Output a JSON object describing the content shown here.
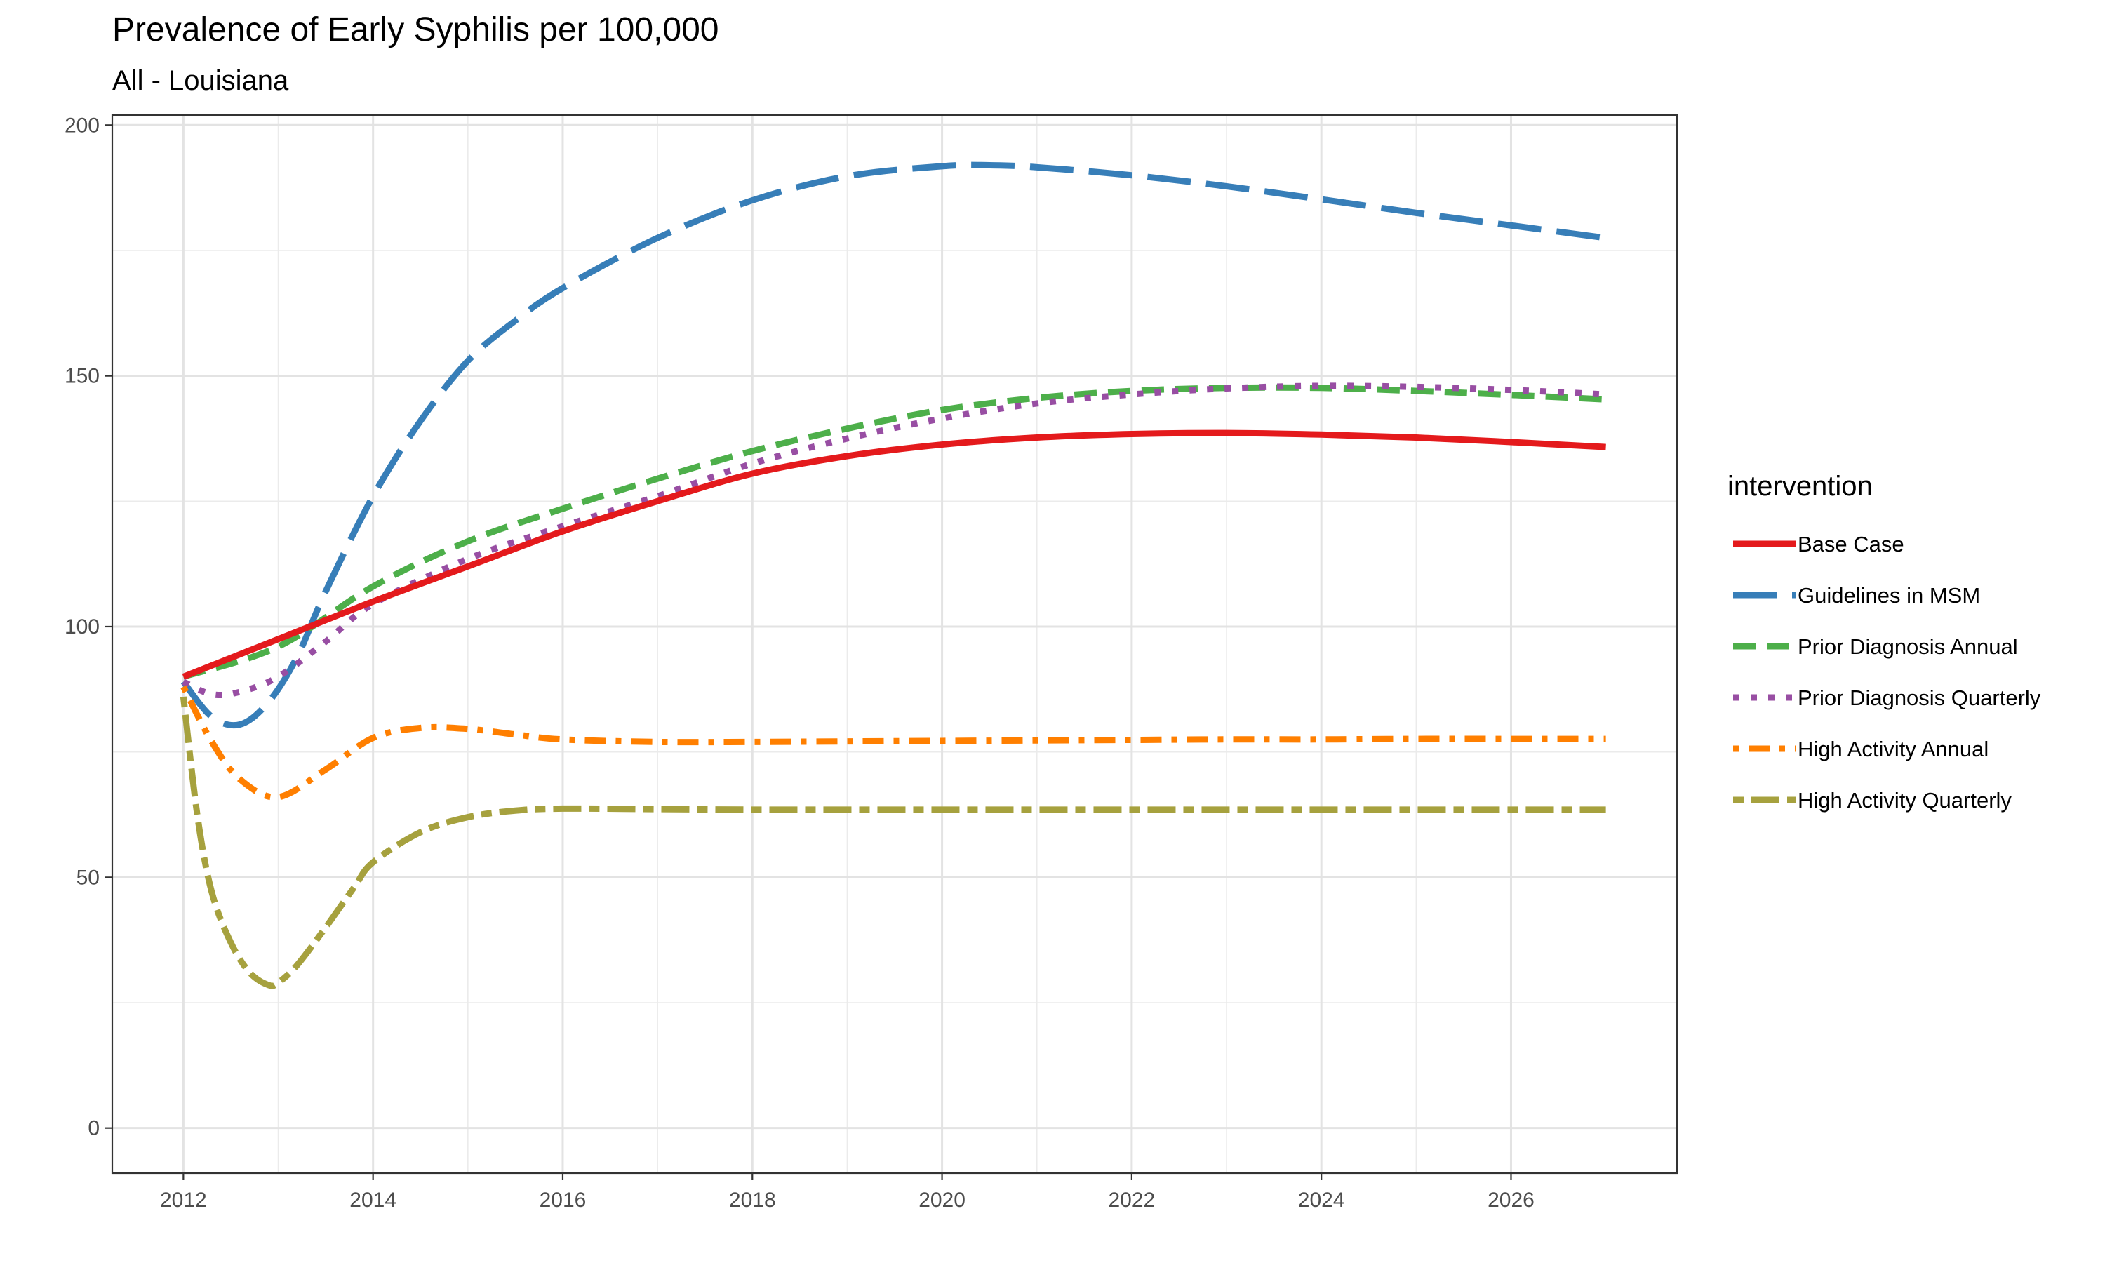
{
  "chart_data": {
    "type": "line",
    "title": "Prevalence of Early Syphilis per 100,000",
    "subtitle": "All - Louisiana",
    "xlabel": "",
    "ylabel": "",
    "xlim": [
      2011.25,
      2027.75
    ],
    "ylim": [
      -9,
      202
    ],
    "grid": true,
    "x_ticks": [
      2012,
      2014,
      2016,
      2018,
      2020,
      2022,
      2024,
      2026
    ],
    "y_ticks": [
      0,
      50,
      100,
      150,
      200
    ],
    "legend": {
      "title": "intervention",
      "position": "right"
    },
    "series": [
      {
        "name": "Base Case",
        "color": "#E41A1C",
        "dash": "solid",
        "x": [
          2012,
          2013,
          2014,
          2015,
          2016,
          2017,
          2018,
          2019,
          2020,
          2021,
          2022,
          2023,
          2024,
          2025,
          2026,
          2027
        ],
        "values": [
          90,
          97.5,
          105,
          112,
          119,
          125,
          130.5,
          134,
          136.3,
          137.7,
          138.4,
          138.6,
          138.3,
          137.7,
          136.8,
          135.8
        ]
      },
      {
        "name": "Guidelines in MSM",
        "color": "#377EB8",
        "dash": "longdash",
        "x": [
          2012,
          2012.3,
          2012.6,
          2012.9,
          2013.2,
          2013.5,
          2014,
          2014.5,
          2015,
          2015.5,
          2016,
          2017,
          2018,
          2019,
          2020,
          2020.5,
          2021,
          2022,
          2023,
          2024,
          2025,
          2026,
          2027
        ],
        "values": [
          89,
          82,
          80.5,
          85,
          94,
          107,
          126,
          141,
          153,
          161,
          167.5,
          177.5,
          185,
          189.8,
          191.8,
          192,
          191.6,
          190,
          187.8,
          185.2,
          182.5,
          180,
          177.5
        ]
      },
      {
        "name": "Prior Diagnosis Annual",
        "color": "#4DAF4A",
        "dash": "dashed",
        "x": [
          2012,
          2013,
          2014,
          2015,
          2016,
          2017,
          2018,
          2019,
          2020,
          2021,
          2022,
          2023,
          2024,
          2025,
          2026,
          2027
        ],
        "values": [
          90,
          96,
          108,
          117,
          123.5,
          129.5,
          135,
          139.5,
          143.2,
          145.6,
          147,
          147.6,
          147.6,
          147,
          146.2,
          145.3
        ]
      },
      {
        "name": "Prior Diagnosis Quarterly",
        "color": "#984EA3",
        "dash": "dotted",
        "x": [
          2012,
          2012.3,
          2012.6,
          2013,
          2013.5,
          2014,
          2015,
          2016,
          2017,
          2018,
          2019,
          2020,
          2021,
          2022,
          2023,
          2024,
          2025,
          2026,
          2027
        ],
        "values": [
          89,
          86.5,
          87,
          90,
          97,
          104.5,
          113.5,
          120,
          126,
          132.5,
          137.5,
          141.5,
          144.5,
          146.3,
          147.5,
          148,
          147.8,
          147.2,
          146.3
        ]
      },
      {
        "name": "High Activity Annual",
        "color": "#FF7F00",
        "dash": "dotdash",
        "x": [
          2012,
          2012.3,
          2012.6,
          2013,
          2013.5,
          2014,
          2014.5,
          2015,
          2015.5,
          2016,
          2017,
          2018,
          2019,
          2020,
          2021,
          2022,
          2023,
          2024,
          2025,
          2026,
          2027
        ],
        "values": [
          88,
          77,
          69.5,
          66,
          71.5,
          77.8,
          79.8,
          79.6,
          78.5,
          77.5,
          77,
          77,
          77.1,
          77.2,
          77.3,
          77.4,
          77.5,
          77.5,
          77.6,
          77.6,
          77.6
        ]
      },
      {
        "name": "High Activity Quarterly",
        "color": "#A6A13E",
        "dash": "twodash",
        "x": [
          2012,
          2012.15,
          2012.3,
          2012.5,
          2012.7,
          2012.9,
          2013,
          2013.2,
          2013.5,
          2013.8,
          2014,
          2014.5,
          2015,
          2015.5,
          2016,
          2017,
          2018,
          2019,
          2020,
          2021,
          2022,
          2023,
          2024,
          2025,
          2026,
          2027
        ],
        "values": [
          86,
          62,
          47,
          37,
          31,
          28.5,
          29,
          32.5,
          40,
          48,
          53,
          59,
          62,
          63.3,
          63.7,
          63.6,
          63.5,
          63.5,
          63.5,
          63.5,
          63.5,
          63.5,
          63.5,
          63.5,
          63.5,
          63.5
        ]
      }
    ]
  }
}
